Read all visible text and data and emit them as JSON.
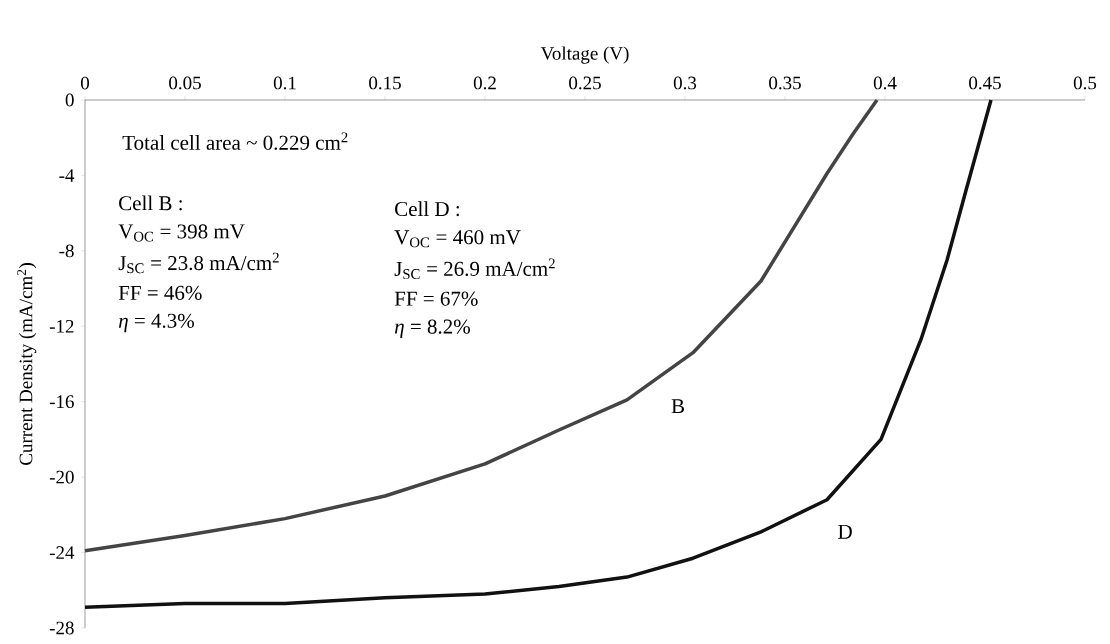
{
  "chart_data": {
    "type": "line",
    "xlabel": "Voltage (V)",
    "ylabel": "Current Density (mA/cm$^{2}$)",
    "xlim": [
      0,
      0.5
    ],
    "ylim": [
      -28,
      0
    ],
    "xticks": [
      0,
      0.05,
      0.1,
      0.15,
      0.2,
      0.25,
      0.3,
      0.35,
      0.4,
      0.45,
      0.5
    ],
    "yticks": [
      -28,
      -24,
      -20,
      -16,
      -12,
      -8,
      -4,
      0
    ],
    "marker": "none",
    "line_style": "solid",
    "series": [
      {
        "name": "B",
        "color": "#444444",
        "x": [
          0,
          0.05,
          0.1,
          0.15,
          0.2,
          0.237,
          0.271,
          0.304,
          0.338,
          0.371,
          0.384,
          0.396
        ],
        "values": [
          -23.9,
          -23.1,
          -22.2,
          -21.0,
          -19.3,
          -17.5,
          -15.9,
          -13.4,
          -9.6,
          -3.9,
          -1.8,
          0
        ]
      },
      {
        "name": "D",
        "color": "#111111",
        "x": [
          0,
          0.05,
          0.1,
          0.15,
          0.2,
          0.237,
          0.271,
          0.304,
          0.338,
          0.371,
          0.398,
          0.418,
          0.431,
          0.441,
          0.453
        ],
        "values": [
          -26.9,
          -26.7,
          -26.7,
          -26.4,
          -26.2,
          -25.8,
          -25.3,
          -24.3,
          -22.9,
          -21.2,
          -18.0,
          -12.7,
          -8.5,
          -4.6,
          0
        ]
      }
    ],
    "annotations": [
      "Total cell area ~ 0.229 cm$^{2}$",
      "Cell B :",
      "V$_{OC}$ = 398 mV",
      "J$_{SC}$ =  23.8 mA/cm$^{2}$",
      "FF = 46%",
      "*η*  = 4.3%",
      "Cell D :",
      "V$_{OC}$ = 460 mV",
      "J$_{SC}$ =  26.9 mA/cm$^{2}$",
      "FF =  67%",
      "*η*  = 8.2%"
    ]
  }
}
